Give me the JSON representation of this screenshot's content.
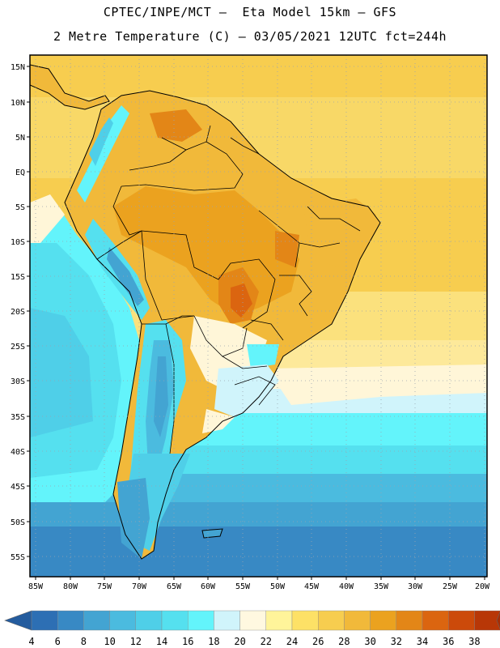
{
  "header": {
    "line1": "CPTEC/INPE/MCT –  Eta Model 15km – GFS",
    "line2": "2 Metre Temperature (C) – 03/05/2021 12UTC fct=244h"
  },
  "axes": {
    "lat_labels": [
      "15N",
      "10N",
      "5N",
      "EQ",
      "5S",
      "10S",
      "15S",
      "20S",
      "25S",
      "30S",
      "35S",
      "40S",
      "45S",
      "50S",
      "55S"
    ],
    "lon_labels": [
      "85W",
      "80W",
      "75W",
      "70W",
      "65W",
      "60W",
      "55W",
      "50W",
      "45W",
      "40W",
      "35W",
      "30W",
      "25W",
      "20W"
    ]
  },
  "colorbar": {
    "ticks": [
      "4",
      "6",
      "8",
      "10",
      "12",
      "14",
      "16",
      "18",
      "20",
      "22",
      "24",
      "26",
      "28",
      "30",
      "32",
      "34",
      "36",
      "38"
    ],
    "colors": [
      "#2d6fb4",
      "#3889c4",
      "#43a4d2",
      "#4bbbdf",
      "#4fcfe8",
      "#55e0ef",
      "#63f4fb",
      "#d0f4fb",
      "#fff8e0",
      "#fff49a",
      "#fde166",
      "#f7cd4f",
      "#f1b93a",
      "#eba21f",
      "#e38617",
      "#db6510",
      "#cc4a0a",
      "#b83707"
    ],
    "low_color": "#245c9e",
    "high_color": "#a62e05"
  },
  "chart_data": {
    "type": "heatmap",
    "title": "2 Metre Temperature (C)",
    "model": "Eta Model 15km - GFS",
    "date": "03/05/2021 12UTC",
    "forecast": "fct=244h",
    "lon_range": [
      -86,
      -20
    ],
    "lat_range": [
      -58,
      16
    ],
    "color_levels": [
      4,
      6,
      8,
      10,
      12,
      14,
      16,
      18,
      20,
      22,
      24,
      26,
      28,
      30,
      32,
      34,
      36,
      38
    ]
  }
}
